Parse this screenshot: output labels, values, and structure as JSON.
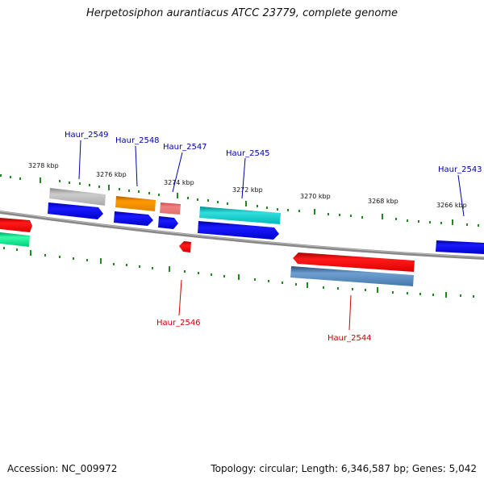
{
  "title": "Herpetosiphon aurantiacus ATCC 23779, complete genome",
  "accession": "Accession: NC_009972",
  "summary": "Topology: circular; Length: 6,346,587 bp; Genes: 5,042",
  "colors": {
    "forward_label": "#0000aa",
    "reverse_label": "#cc0000",
    "backbone": "#888888",
    "tick": "#228822"
  },
  "ticks": [
    "3278 kbp",
    "3276 kbp",
    "3274 kbp",
    "3272 kbp",
    "3270 kbp",
    "3268 kbp",
    "3266 kbp"
  ],
  "genes": {
    "forward": [
      "Haur_2549",
      "Haur_2548",
      "Haur_2547",
      "Haur_2545",
      "Haur_2543"
    ],
    "reverse": [
      "Haur_2546",
      "Haur_2544"
    ]
  }
}
